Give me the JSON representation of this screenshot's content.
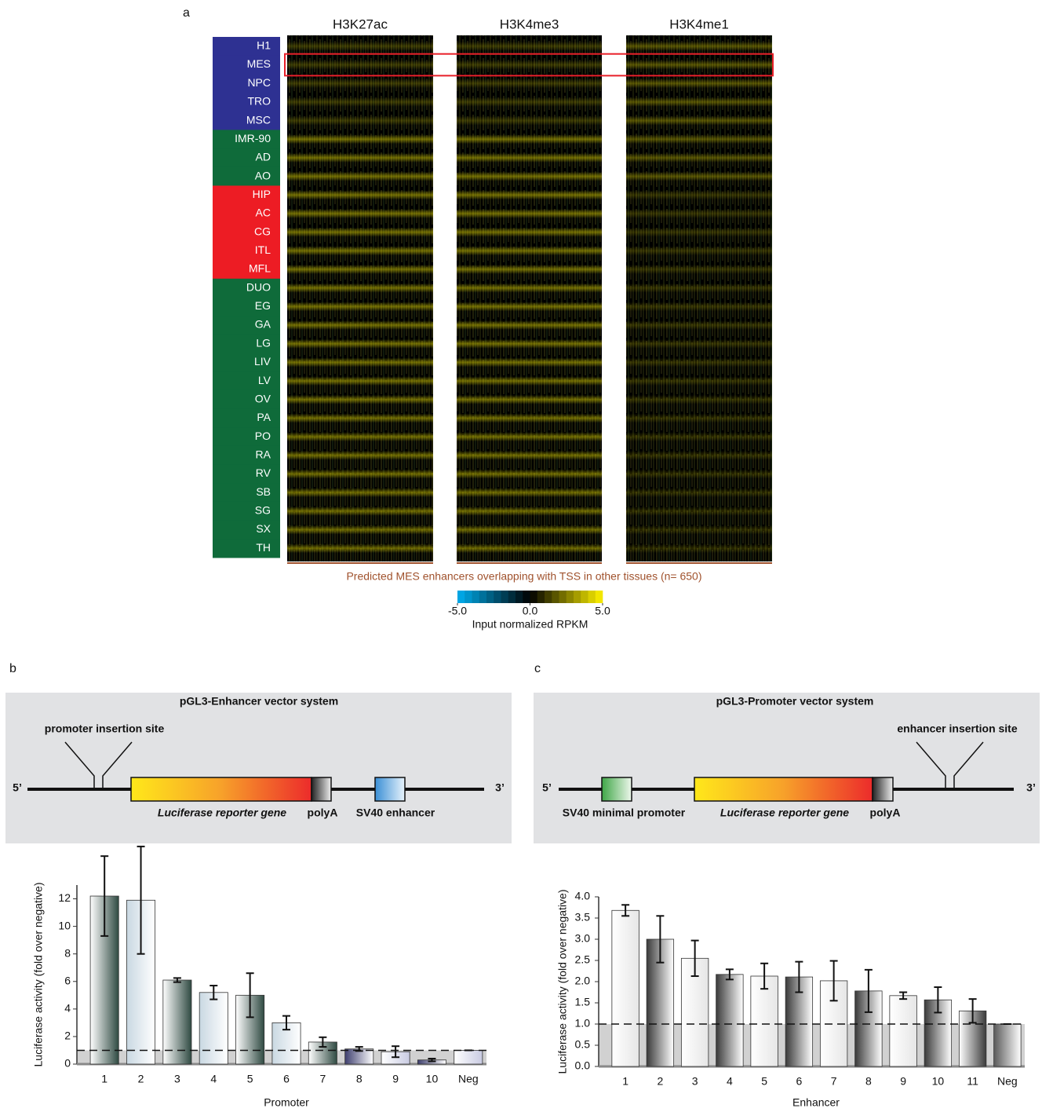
{
  "panel_labels": [
    "a",
    "b",
    "c"
  ],
  "heatmap": {
    "marks": [
      "H3K27ac",
      "H3K4me3",
      "H3K4me1"
    ],
    "rows": [
      {
        "label": "H1",
        "color": "#2e3192"
      },
      {
        "label": "MES",
        "color": "#2e3192"
      },
      {
        "label": "NPC",
        "color": "#2e3192"
      },
      {
        "label": "TRO",
        "color": "#2e3192"
      },
      {
        "label": "MSC",
        "color": "#2e3192"
      },
      {
        "label": "IMR-90",
        "color": "#0f6b3a"
      },
      {
        "label": "AD",
        "color": "#0f6b3a"
      },
      {
        "label": "AO",
        "color": "#0f6b3a"
      },
      {
        "label": "HIP",
        "color": "#ed1c24"
      },
      {
        "label": "AC",
        "color": "#ed1c24"
      },
      {
        "label": "CG",
        "color": "#ed1c24"
      },
      {
        "label": "ITL",
        "color": "#ed1c24"
      },
      {
        "label": "MFL",
        "color": "#ed1c24"
      },
      {
        "label": "DUO",
        "color": "#0f6b3a"
      },
      {
        "label": "EG",
        "color": "#0f6b3a"
      },
      {
        "label": "GA",
        "color": "#0f6b3a"
      },
      {
        "label": "LG",
        "color": "#0f6b3a"
      },
      {
        "label": "LIV",
        "color": "#0f6b3a"
      },
      {
        "label": "LV",
        "color": "#0f6b3a"
      },
      {
        "label": "OV",
        "color": "#0f6b3a"
      },
      {
        "label": "PA",
        "color": "#0f6b3a"
      },
      {
        "label": "PO",
        "color": "#0f6b3a"
      },
      {
        "label": "RA",
        "color": "#0f6b3a"
      },
      {
        "label": "RV",
        "color": "#0f6b3a"
      },
      {
        "label": "SB",
        "color": "#0f6b3a"
      },
      {
        "label": "SG",
        "color": "#0f6b3a"
      },
      {
        "label": "SX",
        "color": "#0f6b3a"
      },
      {
        "label": "TH",
        "color": "#0f6b3a"
      }
    ],
    "highlight_row": 1,
    "highlight_color": "#e8202a",
    "caption": "Predicted MES enhancers overlapping with TSS in other tissues  (n= 650)",
    "caption_color": "#a0522d",
    "colorbar": {
      "lim": [
        -5,
        5
      ],
      "ticks": [
        {
          "value": -5,
          "label": "-5.0"
        },
        {
          "value": 0,
          "label": "0.0"
        },
        {
          "value": 5,
          "label": "5.0"
        }
      ],
      "label": "Input normalized RPKM",
      "colors": [
        "#00aeef",
        "#000000",
        "#fff200"
      ]
    }
  },
  "diagrams": [
    {
      "title": "pGL3-Enhancer vector system",
      "insertion_site": "promoter insertion site",
      "ends": [
        "5’",
        "3’"
      ],
      "parts": [
        "Luciferase reporter gene",
        "polyA",
        "SV40 enhancer"
      ]
    },
    {
      "title": "pGL3-Promoter vector system",
      "insertion_site": "enhancer insertion site",
      "ends": [
        "5’",
        "3’"
      ],
      "parts": [
        "SV40 minimal promoter",
        "Luciferase reporter gene",
        "polyA"
      ]
    }
  ],
  "chart_data": [
    {
      "type": "bar",
      "categories": [
        "1",
        "2",
        "3",
        "4",
        "5",
        "6",
        "7",
        "8",
        "9",
        "10",
        "Neg"
      ],
      "values": [
        12.2,
        11.9,
        6.1,
        5.2,
        5.0,
        3.0,
        1.6,
        1.1,
        0.9,
        0.3,
        1.0
      ],
      "errors": [
        2.9,
        3.9,
        0.15,
        0.5,
        1.6,
        0.5,
        0.35,
        0.15,
        0.4,
        0.1,
        0
      ],
      "colors": [
        "#2f4a42",
        "#c9d8e2",
        "#2f4a42",
        "#c9d8e2",
        "#2f4a42",
        "#c9d8e2",
        "#2f4a42",
        "#3e3f6e",
        "#c9cbe2",
        "#3e3f6e",
        "#c9cbe2"
      ],
      "ylim": [
        0,
        13
      ],
      "yticks": [
        0,
        2,
        4,
        6,
        8,
        10,
        12
      ],
      "reference_line": 1,
      "xlabel": "Promoter",
      "ylabel": "Luciferase activity (fold over negative)"
    },
    {
      "type": "bar",
      "categories": [
        "1",
        "2",
        "3",
        "4",
        "5",
        "6",
        "7",
        "8",
        "9",
        "10",
        "11",
        "Neg"
      ],
      "values": [
        3.68,
        3.0,
        2.55,
        2.17,
        2.13,
        2.11,
        2.02,
        1.78,
        1.67,
        1.57,
        1.31,
        1.0
      ],
      "errors": [
        0.13,
        0.55,
        0.42,
        0.12,
        0.3,
        0.36,
        0.47,
        0.5,
        0.08,
        0.3,
        0.28,
        0
      ],
      "colors": [
        "#e6e6e6",
        "#3a3a3a",
        "#e6e6e6",
        "#3a3a3a",
        "#e6e6e6",
        "#3a3a3a",
        "#e6e6e6",
        "#3a3a3a",
        "#e6e6e6",
        "#3a3a3a",
        "#3a3a3a",
        "#5a5a5a"
      ],
      "ylim": [
        0,
        4.0
      ],
      "yticks": [
        {
          "value": 0,
          "label": "0.0"
        },
        0.5,
        {
          "value": 1,
          "label": "1.0"
        },
        1.5,
        {
          "value": 2,
          "label": "2.0"
        },
        2.5,
        {
          "value": 3,
          "label": "3.0"
        },
        3.5,
        {
          "value": 4,
          "label": "4.0"
        }
      ],
      "reference_line": 1,
      "xlabel": "Enhancer",
      "ylabel": "Luciferase activity (fold over negative)"
    }
  ]
}
